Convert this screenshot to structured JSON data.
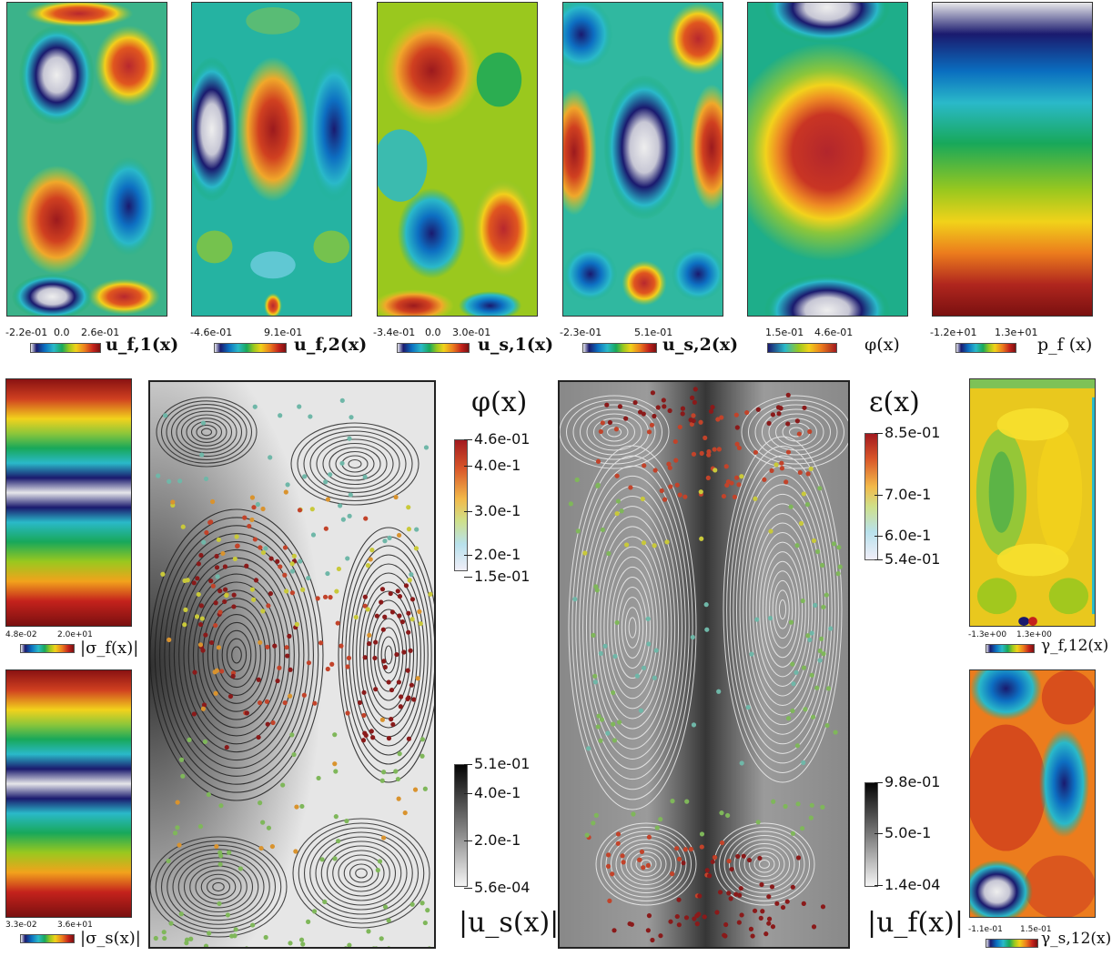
{
  "top_row": [
    {
      "label": "u_f,1(x)",
      "ticks": [
        "-2.2e-01",
        "0.0",
        "2.6e-01"
      ]
    },
    {
      "label": "u_f,2(x)",
      "ticks": [
        "-4.6e-01",
        "9.1e-01"
      ]
    },
    {
      "label": "u_s,1(x)",
      "ticks": [
        "-3.4e-01",
        "0.0",
        "3.0e-01"
      ]
    },
    {
      "label": "u_s,2(x)",
      "ticks": [
        "-2.3e-01",
        "5.1e-01"
      ]
    },
    {
      "label": "φ(x)",
      "ticks": [
        "1.5e-01",
        "4.6e-01"
      ]
    },
    {
      "label": "p_f (x)",
      "ticks": [
        "-1.2e+01",
        "1.3e+01"
      ]
    }
  ],
  "left_col": [
    {
      "label": "|σ_f(x)|",
      "ticks": [
        "4.8e-02",
        "2.0e+01"
      ]
    },
    {
      "label": "|σ_s(x)|",
      "ticks": [
        "3.3e-02",
        "3.6e+01"
      ]
    }
  ],
  "right_col": [
    {
      "label": "γ_f,12(x)",
      "ticks": [
        "-1.3e+00",
        "1.3e+00"
      ]
    },
    {
      "label": "γ_s,12(x)",
      "ticks": [
        "-1.1e-01",
        "1.5e-01"
      ]
    }
  ],
  "solid_panel": {
    "color_title": "φ(x)",
    "color_ticks": [
      "4.6e-01",
      "4.0e-1",
      "3.0e-1",
      "2.0e-1",
      "1.5e-01"
    ],
    "gray_title": "|u_s(x)|",
    "gray_ticks": [
      "5.1e-01",
      "4.0e-1",
      "2.0e-1",
      "5.6e-04"
    ]
  },
  "fluid_panel": {
    "color_title": "ε(x)",
    "color_ticks": [
      "8.5e-01",
      "7.0e-1",
      "6.0e-1",
      "5.4e-01"
    ],
    "gray_title": "|u_f(x)|",
    "gray_ticks": [
      "9.8e-01",
      "5.0e-1",
      "1.4e-04"
    ]
  },
  "colors": {
    "rainbow": [
      "#1a1a6e",
      "#0a5fb0",
      "#2ab9c9",
      "#18a85a",
      "#9ac81e",
      "#f1d21a",
      "#ec7c1d",
      "#c4221c",
      "#7a1010"
    ],
    "phi_bar": [
      "#f0eef8",
      "#b8e1ec",
      "#cfe08a",
      "#f2b94a",
      "#d9572a",
      "#a2191f"
    ]
  }
}
